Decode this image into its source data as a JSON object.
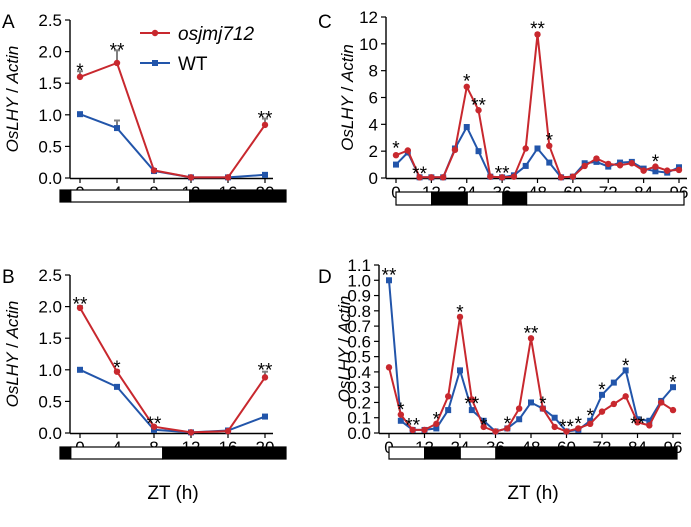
{
  "chart_data": [
    {
      "panel": "A",
      "type": "line",
      "ylabel": [
        "OsLHY",
        " / ",
        "Actin"
      ],
      "xticks": [
        "0",
        "4",
        "8",
        "12",
        "16",
        "20"
      ],
      "yticks": [
        "0.0",
        "0.5",
        "1.0",
        "1.5",
        "2.0",
        "2.5"
      ],
      "xlim": [
        0,
        20
      ],
      "ylim": [
        0,
        2.5
      ],
      "legend": {
        "placement": "top-right",
        "entries": [
          "osjmj712",
          "WT"
        ]
      },
      "series": [
        {
          "name": "osjmj712",
          "color": "#c8282e",
          "marker": "circle",
          "x": [
            0,
            4,
            8,
            12,
            16,
            20
          ],
          "y": [
            1.6,
            1.82,
            0.12,
            0.01,
            0.01,
            0.84
          ],
          "err": [
            0.09,
            0.2,
            0.02,
            0,
            0,
            0.1
          ]
        },
        {
          "name": "WT",
          "color": "#2255aa",
          "marker": "square",
          "x": [
            0,
            4,
            8,
            12,
            16,
            20
          ],
          "y": [
            1.01,
            0.79,
            0.11,
            0.01,
            0.01,
            0.05
          ],
          "err": [
            0.02,
            0.12,
            0.01,
            0,
            0,
            0.01
          ]
        }
      ],
      "annotations": [
        {
          "x": 0,
          "y": 1.69,
          "text": "*"
        },
        {
          "x": 4,
          "y": 2.02,
          "text": "**"
        },
        {
          "x": 20,
          "y": 0.94,
          "text": "**"
        }
      ],
      "lightbar": [
        [
          0,
          1,
          "dark"
        ],
        [
          1,
          12,
          "light"
        ],
        [
          12,
          20.9,
          "dark"
        ]
      ]
    },
    {
      "panel": "B",
      "type": "line",
      "ylabel": [
        "OsLHY",
        " / ",
        "Actin"
      ],
      "xticks": [
        "0",
        "4",
        "8",
        "12",
        "16",
        "20"
      ],
      "yticks": [
        "0.0",
        "0.5",
        "1.0",
        "1.5",
        "2.0",
        "2.5"
      ],
      "xlim": [
        0,
        20
      ],
      "ylim": [
        0,
        2.5
      ],
      "xlabel": "ZT (h)",
      "series": [
        {
          "name": "osjmj712",
          "color": "#c8282e",
          "marker": "circle",
          "x": [
            0,
            4,
            8,
            12,
            16,
            20
          ],
          "y": [
            1.98,
            0.97,
            0.1,
            0.01,
            0.03,
            0.88
          ],
          "err": [
            0.03,
            0.02,
            0.01,
            0,
            0,
            0.09
          ]
        },
        {
          "name": "WT",
          "color": "#2255aa",
          "marker": "square",
          "x": [
            0,
            4,
            8,
            12,
            16,
            20
          ],
          "y": [
            1.0,
            0.73,
            0.05,
            0.01,
            0.04,
            0.26
          ],
          "err": [
            0.02,
            0.02,
            0.01,
            0,
            0,
            0.02
          ]
        }
      ],
      "annotations": [
        {
          "x": 0,
          "y": 2.03,
          "text": "**"
        },
        {
          "x": 4,
          "y": 1.03,
          "text": "*"
        },
        {
          "x": 8,
          "y": 0.14,
          "text": "**"
        },
        {
          "x": 20,
          "y": 0.99,
          "text": "**"
        }
      ],
      "lightbar": [
        [
          0,
          1,
          "dark"
        ],
        [
          1,
          9.5,
          "light"
        ],
        [
          9.5,
          20.9,
          "dark"
        ]
      ]
    },
    {
      "panel": "C",
      "type": "line",
      "ylabel": [
        "OsLHY",
        " / ",
        "Actin"
      ],
      "xticks": [
        "0",
        "12",
        "24",
        "36",
        "48",
        "60",
        "72",
        "84",
        "96"
      ],
      "yticks": [
        "0",
        "2",
        "4",
        "6",
        "8",
        "10",
        "12"
      ],
      "xlim": [
        0,
        96
      ],
      "ylim": [
        0,
        12
      ],
      "series": [
        {
          "name": "osjmj712",
          "color": "#c8282e",
          "marker": "circle",
          "x": [
            0,
            4,
            8,
            12,
            16,
            20,
            24,
            28,
            32,
            36,
            40,
            44,
            48,
            52,
            56,
            60,
            64,
            68,
            72,
            76,
            80,
            84,
            88,
            92,
            96
          ],
          "y": [
            1.7,
            2.05,
            0.05,
            0.05,
            0.05,
            2.1,
            6.8,
            5.05,
            0.1,
            0.05,
            0.1,
            2.2,
            10.7,
            2.4,
            0.05,
            0.1,
            0.9,
            1.45,
            1.05,
            0.95,
            1.1,
            0.55,
            0.85,
            0.55,
            0.6
          ]
        },
        {
          "name": "WT",
          "color": "#2255aa",
          "marker": "square",
          "x": [
            0,
            4,
            8,
            12,
            16,
            20,
            24,
            28,
            32,
            36,
            40,
            44,
            48,
            52,
            56,
            60,
            64,
            68,
            72,
            76,
            80,
            84,
            88,
            92,
            96
          ],
          "y": [
            1.0,
            1.9,
            0.05,
            0.05,
            0.05,
            2.2,
            3.8,
            2.0,
            0.1,
            0.05,
            0.2,
            0.9,
            2.2,
            1.15,
            0.05,
            0.1,
            1.1,
            1.2,
            0.85,
            1.15,
            1.2,
            0.7,
            0.5,
            0.4,
            0.8
          ]
        }
      ],
      "annotations": [
        {
          "x": 0,
          "y": 2.2,
          "text": "*"
        },
        {
          "x": 8,
          "y": 0.3,
          "text": "**"
        },
        {
          "x": 24,
          "y": 7.2,
          "text": "*"
        },
        {
          "x": 28,
          "y": 5.4,
          "text": "**"
        },
        {
          "x": 36,
          "y": 0.35,
          "text": "**"
        },
        {
          "x": 48,
          "y": 11.1,
          "text": "**"
        },
        {
          "x": 52,
          "y": 2.8,
          "text": "*"
        },
        {
          "x": 88,
          "y": 1.2,
          "text": "*"
        }
      ],
      "lightbar": [
        [
          0,
          12,
          "light"
        ],
        [
          12,
          24,
          "dark"
        ],
        [
          24,
          36,
          "light"
        ],
        [
          36,
          44,
          "dark"
        ],
        [
          44,
          97,
          "light"
        ]
      ]
    },
    {
      "panel": "D",
      "type": "line",
      "ylabel": [
        "OsLHY",
        " / ",
        "Actin"
      ],
      "xticks": [
        "0",
        "12",
        "24",
        "36",
        "48",
        "60",
        "72",
        "84",
        "96"
      ],
      "yticks": [
        "0.0",
        "0.1",
        "0.2",
        "0.3",
        "0.4",
        "0.5",
        "0.6",
        "0.7",
        "0.8",
        "0.9",
        "1.0",
        "1.1"
      ],
      "xlim": [
        0,
        96
      ],
      "ylim": [
        0,
        1.1
      ],
      "xlabel": "ZT (h)",
      "series": [
        {
          "name": "osjmj712",
          "color": "#c8282e",
          "marker": "circle",
          "x": [
            0,
            4,
            8,
            12,
            16,
            20,
            24,
            28,
            32,
            36,
            40,
            44,
            48,
            52,
            56,
            60,
            64,
            68,
            72,
            76,
            80,
            84,
            88,
            92,
            96
          ],
          "y": [
            0.43,
            0.12,
            0.02,
            0.02,
            0.06,
            0.24,
            0.76,
            0.22,
            0.04,
            0.01,
            0.03,
            0.16,
            0.62,
            0.16,
            0.04,
            0.01,
            0.03,
            0.06,
            0.14,
            0.19,
            0.24,
            0.07,
            0.05,
            0.2,
            0.15
          ]
        },
        {
          "name": "WT",
          "color": "#2255aa",
          "marker": "square",
          "x": [
            0,
            4,
            8,
            12,
            16,
            20,
            24,
            28,
            32,
            36,
            40,
            44,
            48,
            52,
            56,
            60,
            64,
            68,
            72,
            76,
            80,
            84,
            88,
            92,
            96
          ],
          "y": [
            1.0,
            0.08,
            0.02,
            0.02,
            0.03,
            0.15,
            0.41,
            0.15,
            0.08,
            0.01,
            0.03,
            0.09,
            0.2,
            0.16,
            0.1,
            0.01,
            0.02,
            0.08,
            0.25,
            0.33,
            0.41,
            0.09,
            0.08,
            0.21,
            0.3
          ]
        }
      ],
      "annotations": [
        {
          "x": 0,
          "y": 1.03,
          "text": "**"
        },
        {
          "x": 4,
          "y": 0.15,
          "text": "*"
        },
        {
          "x": 8,
          "y": 0.05,
          "text": "**"
        },
        {
          "x": 16,
          "y": 0.09,
          "text": "*"
        },
        {
          "x": 24,
          "y": 0.79,
          "text": "*"
        },
        {
          "x": 28,
          "y": 0.19,
          "text": "**"
        },
        {
          "x": 32,
          "y": 0.05,
          "text": "*"
        },
        {
          "x": 40,
          "y": 0.06,
          "text": "*"
        },
        {
          "x": 48,
          "y": 0.65,
          "text": "**"
        },
        {
          "x": 52,
          "y": 0.19,
          "text": "*"
        },
        {
          "x": 60,
          "y": 0.04,
          "text": "**"
        },
        {
          "x": 64,
          "y": 0.06,
          "text": "*"
        },
        {
          "x": 68,
          "y": 0.11,
          "text": "*"
        },
        {
          "x": 72,
          "y": 0.28,
          "text": "*"
        },
        {
          "x": 80,
          "y": 0.44,
          "text": "*"
        },
        {
          "x": 84,
          "y": 0.06,
          "text": "**"
        },
        {
          "x": 96,
          "y": 0.33,
          "text": "*"
        }
      ],
      "lightbar": [
        [
          0,
          12,
          "light"
        ],
        [
          12,
          24,
          "dark"
        ],
        [
          24,
          36,
          "light"
        ],
        [
          36,
          97,
          "dark"
        ]
      ]
    }
  ]
}
